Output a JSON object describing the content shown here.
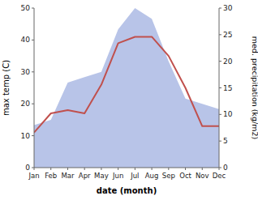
{
  "chart_data": {
    "type": "line",
    "xlabel": "date (month)",
    "ylabel": "max temp (C)",
    "y2label": "med. precipitation (kg/m2)",
    "categories": [
      "Jan",
      "Feb",
      "Mar",
      "Apr",
      "May",
      "Jun",
      "Jul",
      "Aug",
      "Sep",
      "Oct",
      "Nov",
      "Dec"
    ],
    "series": [
      {
        "type": "area",
        "axis": "y2",
        "color": "#b8c4e8",
        "values": [
          8,
          9,
          16,
          17,
          18,
          26,
          30,
          28,
          20,
          13,
          12,
          11
        ]
      },
      {
        "type": "line",
        "color": "#c0504d",
        "values": [
          11,
          17,
          18,
          17,
          26,
          39,
          41,
          41,
          35,
          25,
          13,
          13
        ]
      }
    ],
    "ylim": [
      0,
      50
    ],
    "yticks": [
      0,
      10,
      20,
      30,
      40,
      50
    ],
    "y2lim": [
      0,
      30
    ],
    "y2ticks": [
      0,
      5,
      10,
      15,
      20,
      25,
      30
    ],
    "grid": false
  }
}
